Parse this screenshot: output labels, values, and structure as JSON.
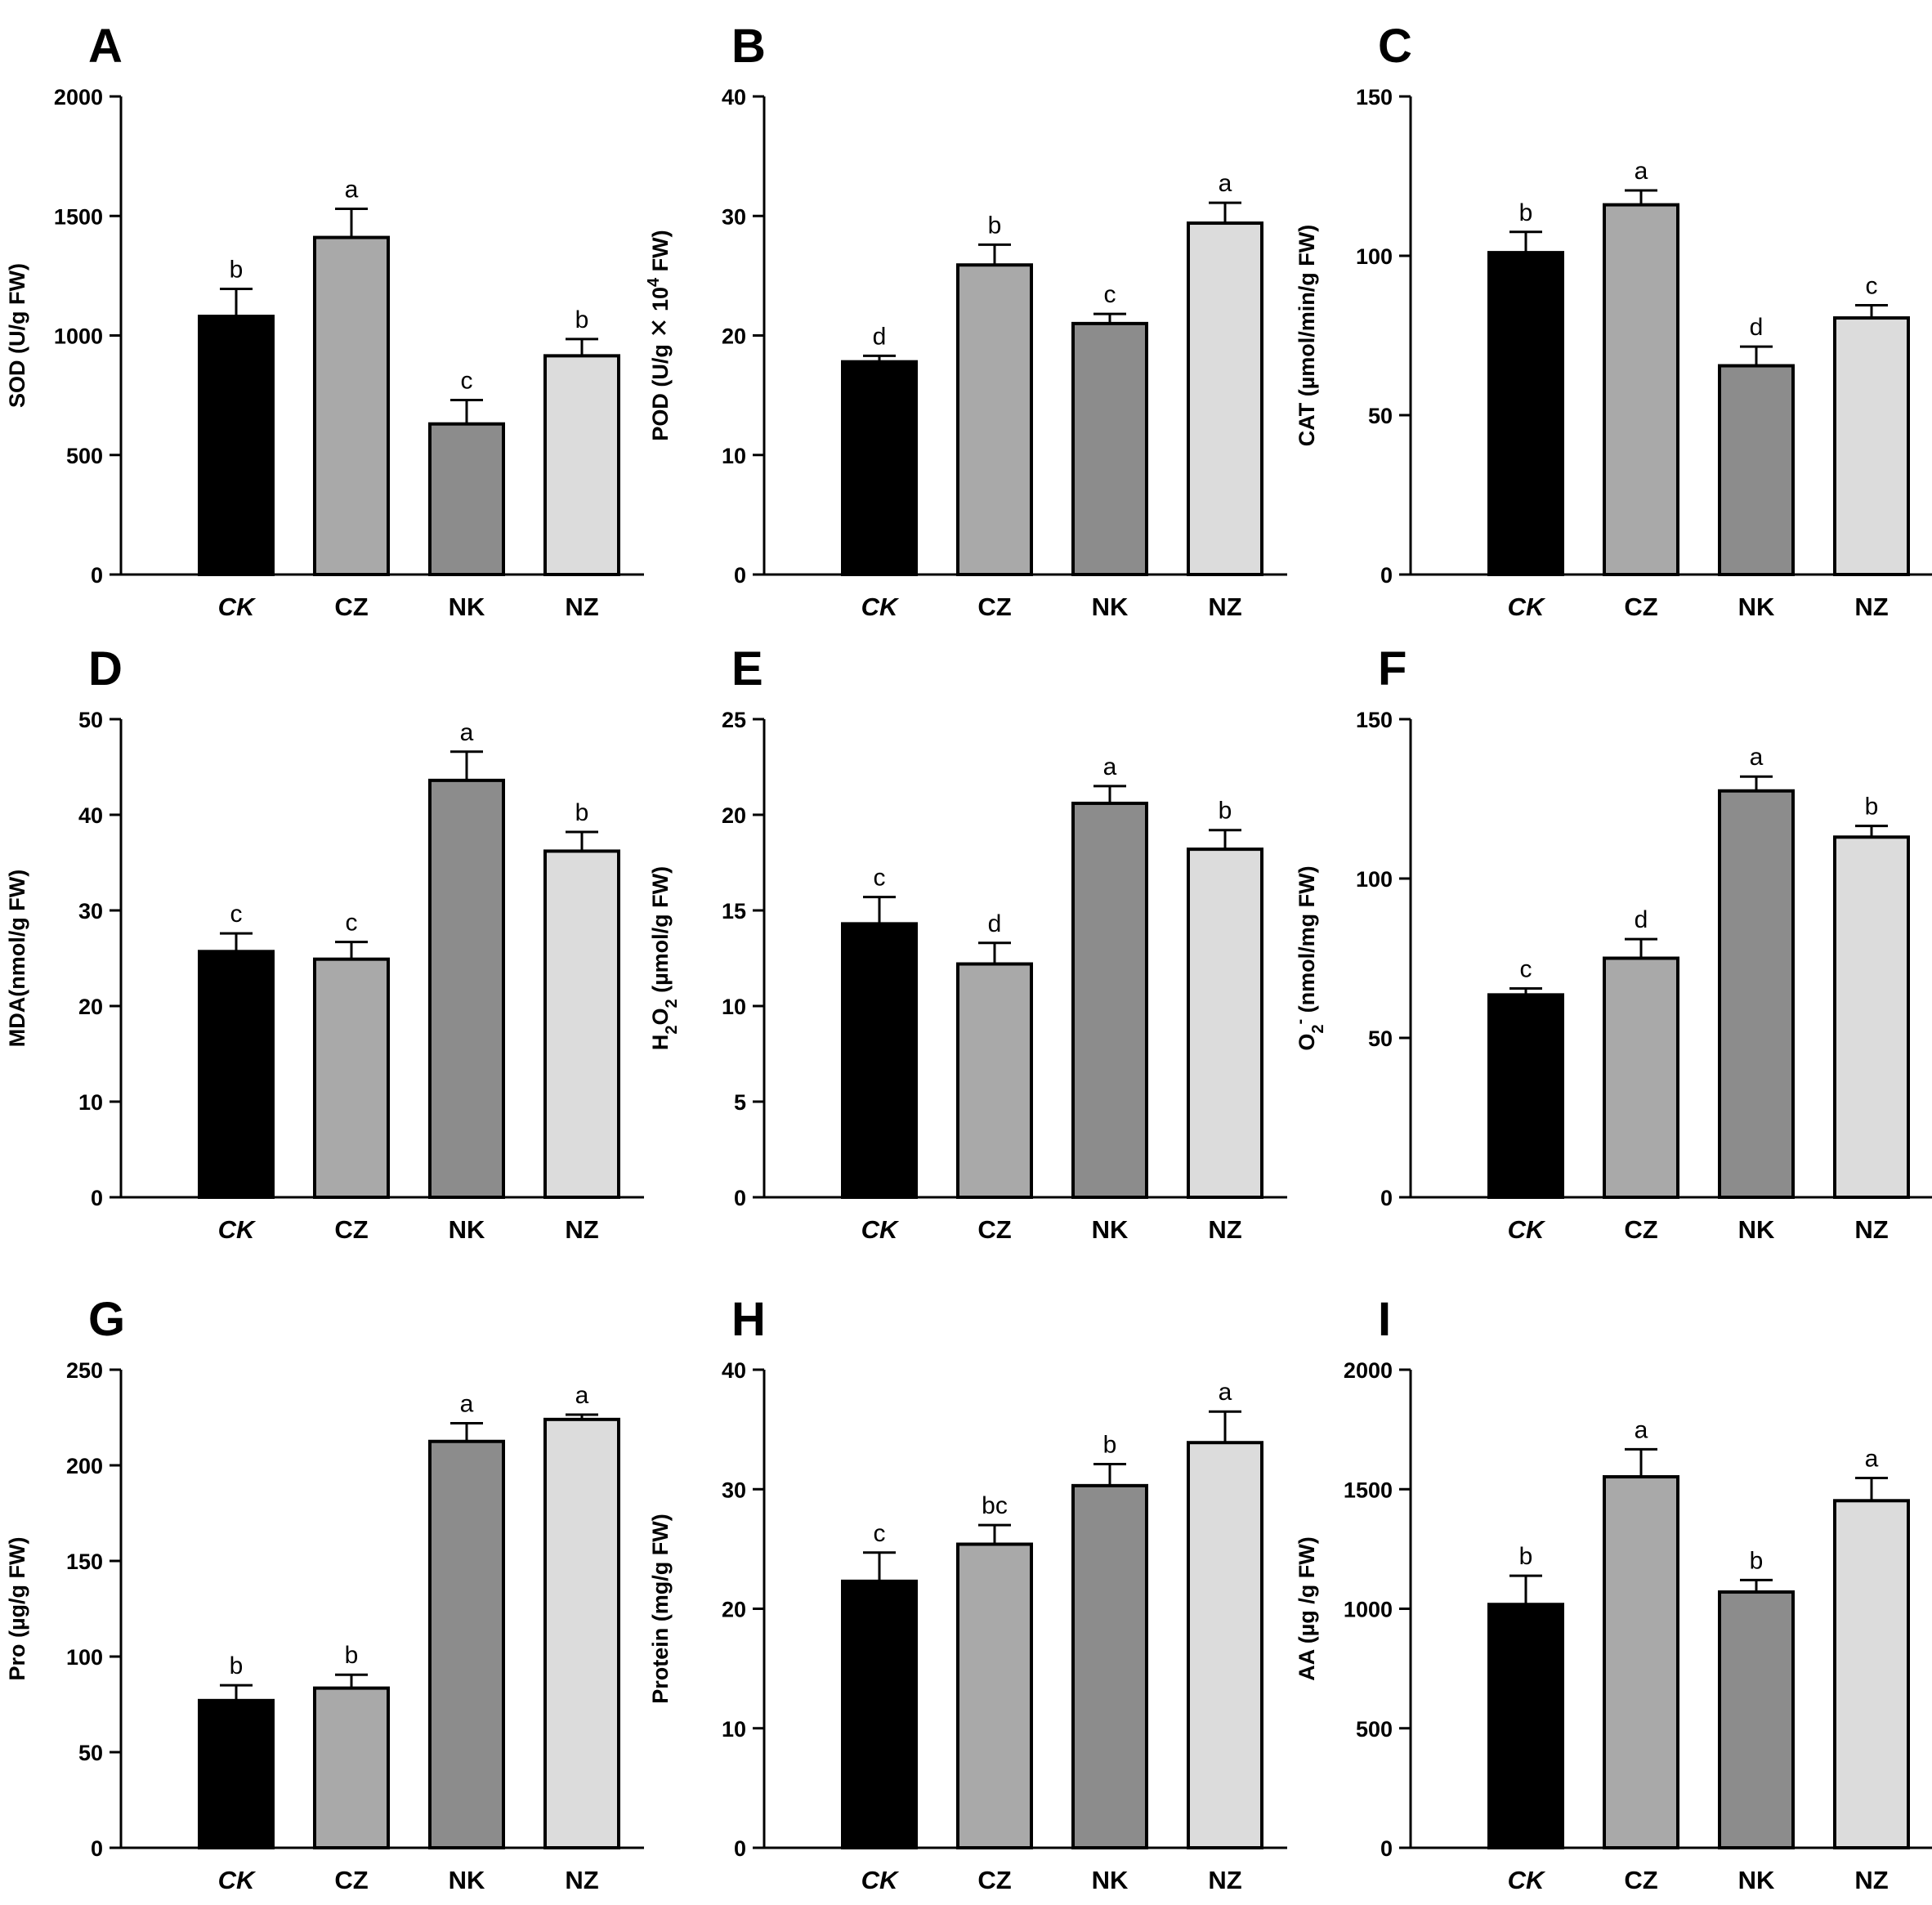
{
  "colors": {
    "CK": "#000000",
    "CZ": "#a9a9a9",
    "NK": "#8c8c8c",
    "NZ": "#dcdcdc",
    "axis": "#000000",
    "background": "#ffffff"
  },
  "chart_data": [
    {
      "type": "bar",
      "panel": "A",
      "categories": [
        "CK",
        "CZ",
        "NK",
        "NZ"
      ],
      "values": [
        1080,
        1410,
        630,
        915
      ],
      "errors": [
        115,
        120,
        100,
        70
      ],
      "significance": [
        "b",
        "a",
        "c",
        "b"
      ],
      "ylim": [
        0,
        2000
      ],
      "yticks": [
        "0",
        "500",
        "1000",
        "1500",
        "2000"
      ],
      "ylabel": [
        {
          "t": "SOD (U/g FW)"
        }
      ]
    },
    {
      "type": "bar",
      "panel": "B",
      "categories": [
        "CK",
        "CZ",
        "NK",
        "NZ"
      ],
      "values": [
        17.8,
        25.9,
        21.0,
        29.4
      ],
      "errors": [
        0.5,
        1.7,
        0.8,
        1.7
      ],
      "significance": [
        "d",
        "b",
        "c",
        "a"
      ],
      "ylim": [
        0,
        40
      ],
      "yticks": [
        "0",
        "10",
        "20",
        "30",
        "40"
      ],
      "ylabel": [
        {
          "t": "POD (U/g "
        },
        {
          "t": "✕",
          "s": "n"
        },
        {
          "t": " 10"
        },
        {
          "t": "4",
          "s": "sup"
        },
        {
          "t": " FW)"
        }
      ]
    },
    {
      "type": "bar",
      "panel": "C",
      "categories": [
        "CK",
        "CZ",
        "NK",
        "NZ"
      ],
      "values": [
        101,
        116,
        65.5,
        80.5
      ],
      "errors": [
        6.5,
        4.5,
        6.0,
        4.0
      ],
      "significance": [
        "b",
        "a",
        "d",
        "c"
      ],
      "ylim": [
        0,
        150
      ],
      "yticks": [
        "0",
        "50",
        "100",
        "150"
      ],
      "ylabel": [
        {
          "t": "CAT (µmol/min/g FW)"
        }
      ]
    },
    {
      "type": "bar",
      "panel": "D",
      "categories": [
        "CK",
        "CZ",
        "NK",
        "NZ"
      ],
      "values": [
        25.7,
        24.9,
        43.6,
        36.2
      ],
      "errors": [
        1.9,
        1.8,
        3.0,
        2.0
      ],
      "significance": [
        "c",
        "c",
        "a",
        "b"
      ],
      "ylim": [
        0,
        50
      ],
      "yticks": [
        "0",
        "10",
        "20",
        "30",
        "40",
        "50"
      ],
      "ylabel": [
        {
          "t": "MDA(nmol/g FW)"
        }
      ]
    },
    {
      "type": "bar",
      "panel": "E",
      "categories": [
        "CK",
        "CZ",
        "NK",
        "NZ"
      ],
      "values": [
        14.3,
        12.2,
        20.6,
        18.2
      ],
      "errors": [
        1.4,
        1.1,
        0.9,
        1.0
      ],
      "significance": [
        "c",
        "d",
        "a",
        "b"
      ],
      "ylim": [
        0,
        25
      ],
      "yticks": [
        "0",
        "5",
        "10",
        "15",
        "20",
        "25"
      ],
      "ylabel": [
        {
          "t": "H"
        },
        {
          "t": "2",
          "s": "sub"
        },
        {
          "t": "O"
        },
        {
          "t": "2",
          "s": "sub"
        },
        {
          "t": " (µmol/g FW)"
        }
      ]
    },
    {
      "type": "bar",
      "panel": "F",
      "categories": [
        "CK",
        "CZ",
        "NK",
        "NZ"
      ],
      "values": [
        63.5,
        75.0,
        127.5,
        113.0
      ],
      "errors": [
        2.0,
        6.0,
        4.5,
        3.5
      ],
      "significance": [
        "c",
        "d",
        "a",
        "b"
      ],
      "ylim": [
        0,
        150
      ],
      "yticks": [
        "0",
        "50",
        "100",
        "150"
      ],
      "ylabel": [
        {
          "t": "O"
        },
        {
          "t": "2",
          "s": "sub"
        },
        {
          "t": "-",
          "s": "sup"
        },
        {
          "t": " (nmol/mg FW)"
        }
      ]
    },
    {
      "type": "bar",
      "panel": "G",
      "categories": [
        "CK",
        "CZ",
        "NK",
        "NZ"
      ],
      "values": [
        77,
        83.5,
        212.5,
        224
      ],
      "errors": [
        8,
        7,
        9.5,
        2.5
      ],
      "significance": [
        "b",
        "b",
        "a",
        "a"
      ],
      "ylim": [
        0,
        250
      ],
      "yticks": [
        "0",
        "50",
        "100",
        "150",
        "200",
        "250"
      ],
      "ylabel": [
        {
          "t": "Pro (µg/g FW)"
        }
      ]
    },
    {
      "type": "bar",
      "panel": "H",
      "categories": [
        "CK",
        "CZ",
        "NK",
        "NZ"
      ],
      "values": [
        22.3,
        25.4,
        30.3,
        33.9
      ],
      "errors": [
        2.4,
        1.6,
        1.8,
        2.6
      ],
      "significance": [
        "c",
        "bc",
        "b",
        "a"
      ],
      "ylim": [
        0,
        40
      ],
      "yticks": [
        "0",
        "10",
        "20",
        "30",
        "40"
      ],
      "ylabel": [
        {
          "t": "Protein (mg/g FW)"
        }
      ]
    },
    {
      "type": "bar",
      "panel": "I",
      "categories": [
        "CK",
        "CZ",
        "NK",
        "NZ"
      ],
      "values": [
        1018,
        1552,
        1070,
        1452
      ],
      "errors": [
        120,
        115,
        50,
        95
      ],
      "significance": [
        "b",
        "a",
        "b",
        "a"
      ],
      "ylim": [
        0,
        2000
      ],
      "yticks": [
        "0",
        "500",
        "1000",
        "1500",
        "2000"
      ],
      "ylabel": [
        {
          "t": "AA (µg /g FW)"
        }
      ]
    }
  ]
}
